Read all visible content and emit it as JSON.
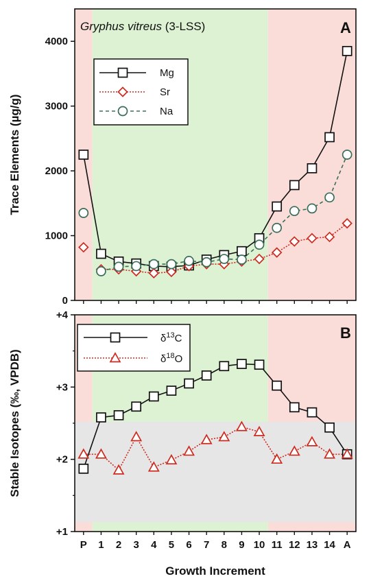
{
  "chart_data": [
    {
      "type": "line",
      "panel_label": "A",
      "title_species": "Gryphus vitreus",
      "title_suffix": " (3-LSS)",
      "ylabel": "Trace Elements (µg/g)",
      "ylim": [
        0,
        4500
      ],
      "yticks": [
        0,
        1000,
        2000,
        3000,
        4000
      ],
      "ytick_labels": [
        "0",
        "1000",
        "2000",
        "3000",
        "4000"
      ],
      "categories": [
        "P",
        "1",
        "2",
        "3",
        "4",
        "5",
        "6",
        "7",
        "8",
        "9",
        "10",
        "11",
        "12",
        "13",
        "14",
        "A"
      ],
      "background_zones": [
        {
          "from": -0.5,
          "to": 0.5,
          "color": "#fadcd8"
        },
        {
          "from": 0.5,
          "to": 10.5,
          "color": "#ddf1d3"
        },
        {
          "from": 10.5,
          "to": 15.5,
          "color": "#fadcd8"
        }
      ],
      "legend_position": "upper-left",
      "series": [
        {
          "name": "Mg",
          "color": "#111111",
          "marker": "square",
          "dash": "",
          "line_from": 0,
          "values": [
            2250,
            720,
            600,
            570,
            530,
            520,
            540,
            630,
            700,
            760,
            960,
            1450,
            1780,
            2040,
            2520,
            3850
          ]
        },
        {
          "name": "Sr",
          "color": "#cc2a1e",
          "marker": "diamond",
          "dash": "2,2",
          "line_from": 1,
          "values": [
            820,
            480,
            480,
            450,
            420,
            440,
            530,
            560,
            560,
            600,
            640,
            740,
            910,
            960,
            980,
            1190
          ]
        },
        {
          "name": "Na",
          "color": "#3a6e5a",
          "marker": "circle",
          "dash": "5,4",
          "line_from": 1,
          "values": [
            1350,
            450,
            520,
            530,
            560,
            560,
            610,
            590,
            640,
            630,
            860,
            1120,
            1380,
            1420,
            1590,
            2250
          ]
        }
      ]
    },
    {
      "type": "line",
      "panel_label": "B",
      "ylabel": "Stable Isotopes (‰, VPDB)",
      "xlabel": "Growth Increment",
      "ylim": [
        1,
        4
      ],
      "yticks": [
        1,
        2,
        3,
        4
      ],
      "ytick_labels": [
        "+1",
        "+2",
        "+3",
        "+4"
      ],
      "categories": [
        "P",
        "1",
        "2",
        "3",
        "4",
        "5",
        "6",
        "7",
        "8",
        "9",
        "10",
        "11",
        "12",
        "13",
        "14",
        "A"
      ],
      "background_zones": [
        {
          "from": -0.5,
          "to": 0.5,
          "color": "#fadcd8"
        },
        {
          "from": 0.5,
          "to": 10.5,
          "color": "#ddf1d3"
        },
        {
          "from": 10.5,
          "to": 15.5,
          "color": "#fadcd8"
        }
      ],
      "gray_band": {
        "from": 1.13,
        "to": 2.52,
        "color": "#e6e6e6"
      },
      "legend_position": "upper-left",
      "series": [
        {
          "name_symbol": "δ",
          "name_sup": "13",
          "name_tail": "C",
          "color": "#111111",
          "marker": "square",
          "dash": "",
          "line_from": 0,
          "values": [
            1.87,
            2.58,
            2.61,
            2.73,
            2.87,
            2.95,
            3.05,
            3.16,
            3.29,
            3.32,
            3.31,
            3.02,
            2.72,
            2.65,
            2.44,
            2.07
          ]
        },
        {
          "name_symbol": "δ",
          "name_sup": "18",
          "name_tail": "O",
          "color": "#cc2a1e",
          "marker": "triangle",
          "dash": "2,2",
          "line_from": 0,
          "values": [
            2.07,
            2.07,
            1.85,
            2.31,
            1.89,
            1.99,
            2.11,
            2.27,
            2.31,
            2.45,
            2.38,
            2.0,
            2.11,
            2.24,
            2.07,
            2.07
          ]
        }
      ]
    }
  ]
}
